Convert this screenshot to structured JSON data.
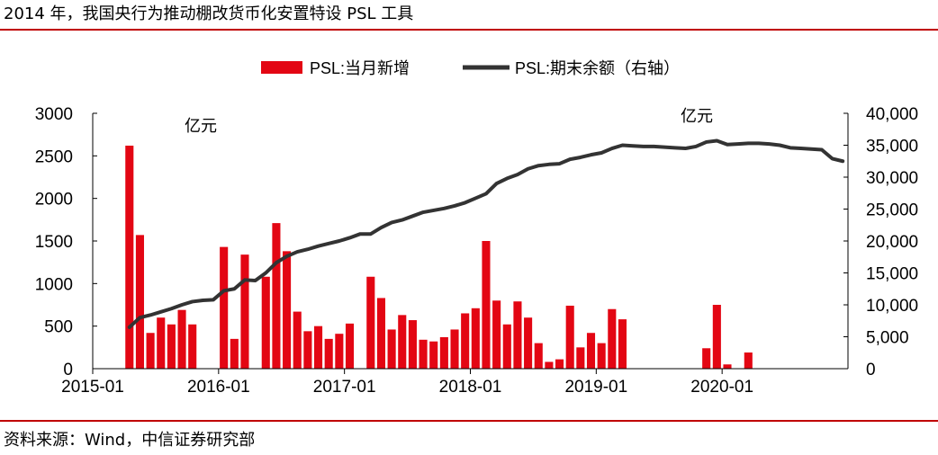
{
  "title": "2014 年，我国央行为推动棚改货币化安置特设 PSL 工具",
  "source": "资料来源：Wind，中信证券研究部",
  "colors": {
    "bar": "#e30613",
    "line": "#333333",
    "rule": "#c00000"
  },
  "chart_data": {
    "type": "bar",
    "legend_position": "top-center",
    "left_unit": "亿元",
    "right_unit": "亿元",
    "ylim_left": [
      0,
      3000
    ],
    "ylim_right": [
      0,
      40000
    ],
    "left_ticks": [
      "0",
      "500",
      "1000",
      "1500",
      "2000",
      "2500",
      "3000"
    ],
    "right_ticks": [
      "0",
      "5,000",
      "10,000",
      "15,000",
      "20,000",
      "25,000",
      "30,000",
      "35,000",
      "40,000"
    ],
    "x_ticks": [
      "2015-01",
      "2016-01",
      "2017-01",
      "2018-01",
      "2019-01",
      "2020-01"
    ],
    "x_start": "2015-01",
    "categories": [
      "2015-04",
      "2015-05",
      "2015-06",
      "2015-07",
      "2015-08",
      "2015-09",
      "2015-10",
      "2015-11",
      "2015-12",
      "2016-01",
      "2016-02",
      "2016-03",
      "2016-04",
      "2016-05",
      "2016-06",
      "2016-07",
      "2016-08",
      "2016-09",
      "2016-10",
      "2016-11",
      "2016-12",
      "2017-01",
      "2017-02",
      "2017-03",
      "2017-04",
      "2017-05",
      "2017-06",
      "2017-07",
      "2017-08",
      "2017-09",
      "2017-10",
      "2017-11",
      "2017-12",
      "2018-01",
      "2018-02",
      "2018-03",
      "2018-04",
      "2018-05",
      "2018-06",
      "2018-07",
      "2018-08",
      "2018-09",
      "2018-10",
      "2018-11",
      "2018-12",
      "2019-01",
      "2019-02",
      "2019-03",
      "2019-04",
      "2019-05",
      "2019-06",
      "2019-07",
      "2019-08",
      "2019-09",
      "2019-10",
      "2019-11",
      "2019-12",
      "2020-01",
      "2020-02",
      "2020-03",
      "2020-04",
      "2020-05",
      "2020-06",
      "2020-07",
      "2020-08",
      "2020-09",
      "2020-10",
      "2020-11",
      "2020-12"
    ],
    "series": [
      {
        "name": "PSL:当月新增",
        "type": "bar",
        "axis": "left",
        "values": [
          2620,
          1570,
          420,
          600,
          520,
          690,
          520,
          0,
          0,
          1430,
          350,
          1340,
          0,
          1080,
          1710,
          1380,
          670,
          440,
          500,
          350,
          410,
          530,
          0,
          1080,
          830,
          460,
          630,
          570,
          340,
          320,
          370,
          460,
          650,
          710,
          1500,
          800,
          520,
          790,
          600,
          300,
          80,
          110,
          740,
          250,
          420,
          300,
          700,
          580,
          0,
          0,
          0,
          0,
          0,
          0,
          0,
          240,
          750,
          50,
          0,
          190,
          0,
          0,
          0,
          0,
          0,
          0,
          0,
          0,
          0
        ]
      },
      {
        "name": "PSL:期末余额（右轴）",
        "type": "line",
        "axis": "right",
        "values": [
          6500,
          8000,
          8400,
          8900,
          9400,
          10000,
          10500,
          10700,
          10800,
          12200,
          12500,
          13900,
          13800,
          15000,
          16600,
          17600,
          18300,
          18700,
          19200,
          19600,
          20000,
          20500,
          21100,
          21100,
          22100,
          22900,
          23300,
          23900,
          24500,
          24800,
          25100,
          25500,
          26000,
          26700,
          27400,
          29000,
          29800,
          30400,
          31300,
          31800,
          32000,
          32100,
          32800,
          33100,
          33500,
          33800,
          34500,
          35000,
          34900,
          34800,
          34800,
          34700,
          34600,
          34500,
          34800,
          35500,
          35700,
          35100,
          35200,
          35300,
          35300,
          35200,
          35000,
          34600,
          34500,
          34400,
          34300,
          32900,
          32500
        ]
      }
    ]
  }
}
